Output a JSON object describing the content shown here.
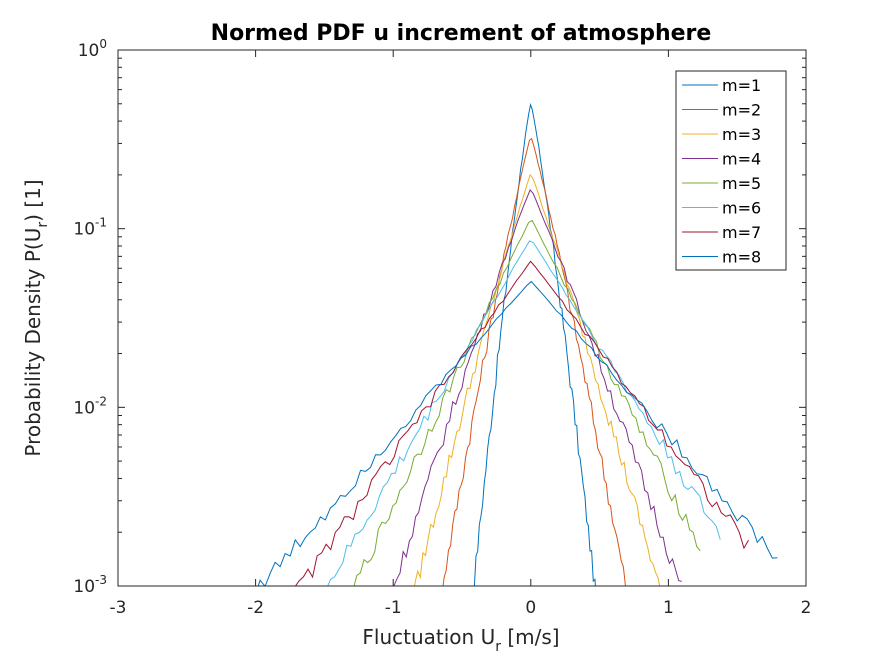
{
  "chart_data": {
    "type": "line",
    "title": "Normed PDF u increment of atmosphere",
    "xlabel": {
      "main": "Fluctuation U",
      "sub": "r",
      "rest": " [m/s]"
    },
    "ylabel": {
      "main": "Probability Density P(U",
      "sub": "r",
      "rest": ") [1]"
    },
    "xlim": [
      -3,
      2
    ],
    "ylim": [
      0.001,
      1
    ],
    "yscale": "log",
    "grid": false,
    "legend_position": "top-right",
    "x_ticks": [
      "-3",
      "-2",
      "-1",
      "0",
      "1",
      "2"
    ],
    "y_ticks": [
      {
        "value": 1,
        "base": "10",
        "exp": "0"
      },
      {
        "value": 0.1,
        "base": "10",
        "exp": "-1"
      },
      {
        "value": 0.01,
        "base": "10",
        "exp": "-2"
      },
      {
        "value": 0.001,
        "base": "10",
        "exp": "-3"
      }
    ],
    "series": [
      {
        "name": "m=1",
        "color": "#0072bd",
        "peak": 0.5,
        "s_left": 0.085,
        "s_right": 0.095,
        "alpha": 1.15,
        "cutoff_left": -0.65,
        "cutoff_right": 0.6
      },
      {
        "name": "m=2",
        "color": "#d95319",
        "peak": 0.33,
        "s_left": 0.13,
        "s_right": 0.14,
        "alpha": 1.1,
        "cutoff_left": -0.8,
        "cutoff_right": 0.9
      },
      {
        "name": "m=3",
        "color": "#edb120",
        "peak": 0.205,
        "s_left": 0.17,
        "s_right": 0.19,
        "alpha": 1.05,
        "cutoff_left": -1.05,
        "cutoff_right": 1.0
      },
      {
        "name": "m=4",
        "color": "#7e2f8e",
        "peak": 0.168,
        "s_left": 0.21,
        "s_right": 0.23,
        "alpha": 1.05,
        "cutoff_left": -1.4,
        "cutoff_right": 1.1
      },
      {
        "name": "m=5",
        "color": "#77ac30",
        "peak": 0.115,
        "s_left": 0.27,
        "s_right": 0.29,
        "alpha": 1.0,
        "cutoff_left": -1.55,
        "cutoff_right": 1.25
      },
      {
        "name": "m=6",
        "color": "#4dbeee",
        "peak": 0.088,
        "s_left": 0.33,
        "s_right": 0.36,
        "alpha": 1.0,
        "cutoff_left": -1.75,
        "cutoff_right": 1.4
      },
      {
        "name": "m=7",
        "color": "#a2142f",
        "peak": 0.066,
        "s_left": 0.4,
        "s_right": 0.43,
        "alpha": 1.0,
        "cutoff_left": -1.85,
        "cutoff_right": 1.6
      },
      {
        "name": "m=8",
        "color": "#0072bd",
        "peak": 0.051,
        "s_left": 0.5,
        "s_right": 0.5,
        "alpha": 1.0,
        "cutoff_left": -2.15,
        "cutoff_right": 1.8
      }
    ]
  }
}
